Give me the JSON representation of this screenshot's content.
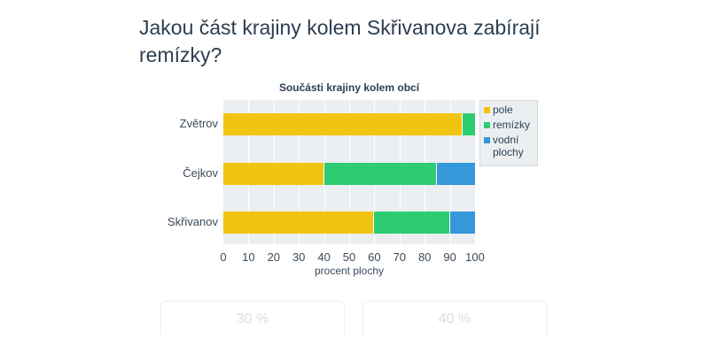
{
  "question": "Jakou část krajiny kolem Skřivanova zabírají remízky?",
  "chart_data": {
    "type": "bar",
    "orientation": "horizontal",
    "stacked": true,
    "title": "Součásti krajiny kolem obcí",
    "xlabel": "procent plochy",
    "ylabel": "",
    "xlim": [
      0,
      100
    ],
    "x_ticks": [
      "0",
      "10",
      "20",
      "30",
      "40",
      "50",
      "60",
      "70",
      "80",
      "90",
      "100"
    ],
    "categories": [
      "Zvětrov",
      "Čejkov",
      "Skřivanov"
    ],
    "series": [
      {
        "name": "pole",
        "color": "#f1c40f",
        "values": [
          95,
          40,
          60
        ]
      },
      {
        "name": "remízky",
        "color": "#2ecc71",
        "values": [
          5,
          45,
          30
        ]
      },
      {
        "name": "vodní plochy",
        "color": "#3498db",
        "values": [
          0,
          15,
          10
        ]
      }
    ],
    "grid": true,
    "legend_position": "right-top"
  },
  "legend": {
    "items": [
      {
        "label": "pole",
        "color": "#f1c40f"
      },
      {
        "label": "remízky",
        "color": "#2ecc71"
      },
      {
        "label": "vodní plochy",
        "color": "#3498db"
      }
    ]
  },
  "answers": [
    {
      "label": "30 %"
    },
    {
      "label": "40 %"
    }
  ]
}
